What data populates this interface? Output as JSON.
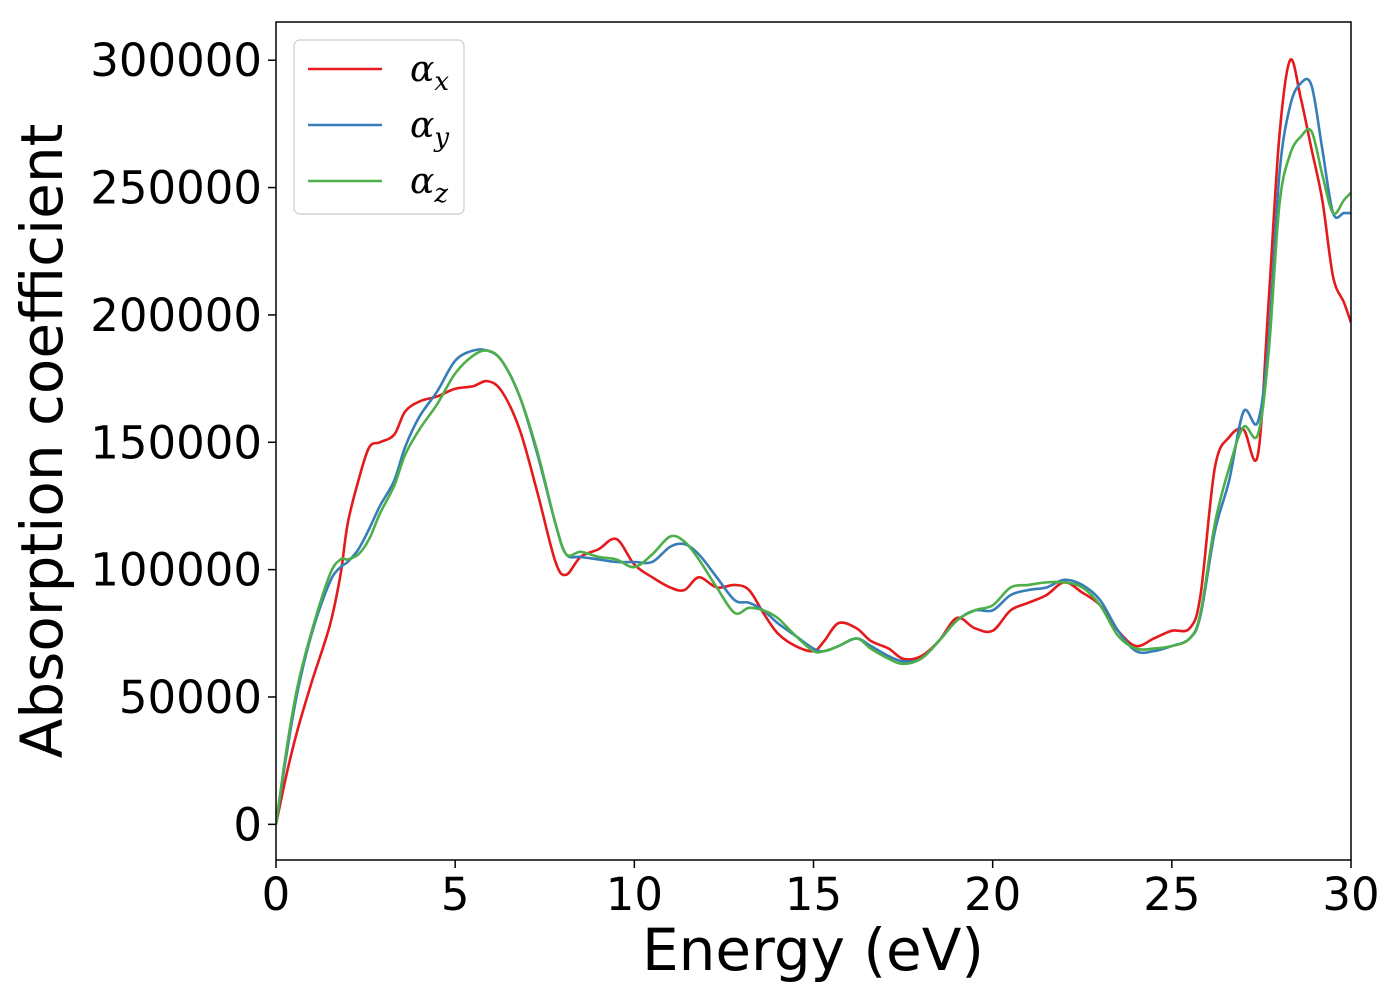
{
  "chart_data": {
    "type": "line",
    "xlabel": "Energy (eV)",
    "ylabel": "Absorption coefficient",
    "xlim": [
      0,
      30
    ],
    "ylim": [
      -14000,
      315000
    ],
    "x_ticks": [
      0,
      5,
      10,
      15,
      20,
      25,
      30
    ],
    "y_ticks": [
      0,
      50000,
      100000,
      150000,
      200000,
      250000,
      300000
    ],
    "grid": false,
    "legend_position": "top-left",
    "series": [
      {
        "name": "α_x",
        "name_base": "α",
        "name_sub": "x",
        "color": "#e41a1c",
        "x": [
          0,
          0.3,
          0.6,
          1.0,
          1.5,
          1.8,
          2.0,
          2.3,
          2.6,
          2.9,
          3.3,
          3.6,
          4.0,
          4.5,
          5.0,
          5.5,
          5.9,
          6.3,
          6.8,
          7.3,
          7.8,
          8.1,
          8.5,
          9.0,
          9.5,
          10.0,
          10.5,
          11.0,
          11.4,
          11.8,
          12.3,
          12.8,
          13.2,
          13.6,
          14.0,
          14.5,
          15.0,
          15.3,
          15.7,
          16.2,
          16.6,
          17.1,
          17.5,
          18.0,
          18.5,
          19.0,
          19.5,
          20.0,
          20.5,
          21.0,
          21.5,
          22.0,
          22.5,
          23.0,
          23.5,
          24.0,
          24.5,
          25.0,
          25.5,
          25.8,
          26.2,
          26.6,
          27.0,
          27.4,
          27.7,
          28.0,
          28.3,
          28.6,
          28.9,
          29.2,
          29.5,
          29.8,
          30.0
        ],
        "y": [
          0,
          20000,
          37000,
          56000,
          78000,
          98000,
          118000,
          135000,
          148000,
          150000,
          153000,
          162000,
          166000,
          168000,
          171000,
          172000,
          174000,
          170000,
          155000,
          130000,
          103000,
          98000,
          105000,
          108000,
          112000,
          102000,
          97000,
          93000,
          92000,
          97000,
          93000,
          94000,
          92000,
          83000,
          75000,
          70000,
          68000,
          72000,
          79000,
          77000,
          72000,
          69000,
          65000,
          66000,
          72000,
          81000,
          77000,
          76000,
          84000,
          87000,
          90000,
          95000,
          91000,
          86000,
          76000,
          70000,
          73000,
          76000,
          77000,
          90000,
          140000,
          152000,
          155000,
          145000,
          205000,
          270000,
          300000,
          285000,
          265000,
          245000,
          215000,
          205000,
          197000
        ]
      },
      {
        "name": "α_y",
        "name_base": "α",
        "name_sub": "y",
        "color": "#377eb8",
        "x": [
          0,
          0.3,
          0.6,
          1.0,
          1.5,
          1.8,
          2.0,
          2.3,
          2.6,
          2.9,
          3.3,
          3.6,
          4.0,
          4.5,
          5.0,
          5.5,
          5.9,
          6.3,
          6.8,
          7.3,
          7.8,
          8.1,
          8.5,
          9.0,
          9.5,
          10.0,
          10.5,
          11.0,
          11.4,
          11.8,
          12.3,
          12.8,
          13.2,
          13.6,
          14.0,
          14.5,
          15.0,
          15.3,
          15.7,
          16.2,
          16.6,
          17.1,
          17.5,
          18.0,
          18.5,
          19.0,
          19.5,
          20.0,
          20.5,
          21.0,
          21.5,
          22.0,
          22.5,
          23.0,
          23.5,
          24.0,
          24.5,
          25.0,
          25.5,
          25.8,
          26.2,
          26.6,
          27.0,
          27.4,
          27.7,
          28.0,
          28.3,
          28.6,
          28.9,
          29.2,
          29.5,
          29.8,
          30.0
        ],
        "y": [
          0,
          28000,
          52000,
          75000,
          95000,
          101000,
          103000,
          108000,
          116000,
          125000,
          135000,
          148000,
          160000,
          170000,
          182000,
          186000,
          186000,
          182000,
          168000,
          145000,
          118000,
          106000,
          105000,
          104000,
          103000,
          103000,
          103000,
          109000,
          110000,
          106000,
          97000,
          88000,
          87000,
          84000,
          79000,
          74000,
          69000,
          68000,
          70000,
          73000,
          70000,
          66000,
          64000,
          65000,
          72000,
          80000,
          84000,
          84000,
          90000,
          92000,
          93000,
          96000,
          94000,
          88000,
          76000,
          68000,
          68000,
          70000,
          73000,
          82000,
          115000,
          135000,
          162000,
          158000,
          190000,
          255000,
          282000,
          291000,
          290000,
          265000,
          240000,
          240000,
          240000
        ]
      },
      {
        "name": "α_z",
        "name_base": "α",
        "name_sub": "z",
        "color": "#4daf4a",
        "x": [
          0,
          0.3,
          0.6,
          1.0,
          1.5,
          1.8,
          2.0,
          2.3,
          2.6,
          2.9,
          3.3,
          3.6,
          4.0,
          4.5,
          5.0,
          5.5,
          5.9,
          6.3,
          6.8,
          7.3,
          7.8,
          8.1,
          8.5,
          9.0,
          9.5,
          10.0,
          10.5,
          11.0,
          11.4,
          11.8,
          12.3,
          12.8,
          13.2,
          13.6,
          14.0,
          14.5,
          15.0,
          15.3,
          15.7,
          16.2,
          16.6,
          17.1,
          17.5,
          18.0,
          18.5,
          19.0,
          19.5,
          20.0,
          20.5,
          21.0,
          21.5,
          22.0,
          22.5,
          23.0,
          23.5,
          24.0,
          24.5,
          25.0,
          25.5,
          25.8,
          26.2,
          26.6,
          27.0,
          27.4,
          27.7,
          28.0,
          28.3,
          28.6,
          28.9,
          29.2,
          29.5,
          29.8,
          30.0
        ],
        "y": [
          0,
          30000,
          54000,
          76000,
          98000,
          104000,
          104000,
          106000,
          112000,
          122000,
          133000,
          145000,
          155000,
          165000,
          177000,
          184000,
          186000,
          182000,
          168000,
          146000,
          118000,
          106000,
          107000,
          105000,
          104000,
          101000,
          106000,
          113000,
          111000,
          104000,
          93000,
          83000,
          85000,
          84000,
          81000,
          74000,
          68000,
          68000,
          70000,
          73000,
          69000,
          65000,
          63000,
          65000,
          72000,
          80000,
          84000,
          86000,
          93000,
          94000,
          95000,
          95000,
          93000,
          86000,
          74000,
          69000,
          69000,
          70000,
          73000,
          83000,
          118000,
          140000,
          156000,
          153000,
          185000,
          243000,
          263000,
          270000,
          272000,
          255000,
          240000,
          245000,
          248000
        ]
      }
    ]
  }
}
